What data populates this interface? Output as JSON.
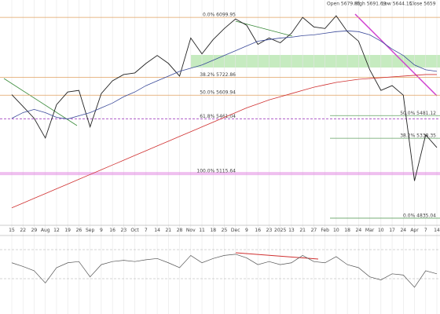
{
  "chart_data": [
    {
      "type": "line",
      "header": [
        "Open 5679.65",
        "High 5691.69",
        "Low 5644.15",
        "Close 5659"
      ],
      "categories": [
        "15",
        "22",
        "29",
        "Aug",
        "12",
        "19",
        "26",
        "Sep",
        "9",
        "16",
        "23",
        "Oct",
        "7",
        "14",
        "21",
        "28",
        "Nov",
        "11",
        "18",
        "25",
        "Dec",
        "9",
        "16",
        "23",
        "2025",
        "13",
        "21",
        "27",
        "Feb",
        "10",
        "18",
        "24",
        "Mar",
        "10",
        "17",
        "24",
        "Apr",
        "7",
        "14"
      ],
      "series": [
        {
          "color": "#222222",
          "values": [
            5613,
            5539,
            5464,
            5340,
            5550,
            5630,
            5640,
            5410,
            5620,
            5700,
            5740,
            5750,
            5810,
            5860,
            5810,
            5730,
            5970,
            5870,
            5960,
            6030,
            6090,
            6050,
            5930,
            5970,
            5940,
            6000,
            6100,
            6040,
            6030,
            6110,
            6010,
            5950,
            5770,
            5640,
            5670,
            5610,
            5070,
            5360,
            5280
          ]
        },
        {
          "color": "#3a4a9a",
          "values": [
            5464,
            5500,
            5520,
            5500,
            5470,
            5460,
            5480,
            5500,
            5530,
            5560,
            5600,
            5630,
            5670,
            5700,
            5730,
            5760,
            5780,
            5800,
            5830,
            5860,
            5890,
            5920,
            5950,
            5960,
            5970,
            5975,
            5985,
            5990,
            6000,
            6010,
            6015,
            6010,
            5990,
            5950,
            5900,
            5860,
            5800,
            5770,
            5760
          ]
        },
        {
          "color": "#d03030",
          "values": [
            4900,
            4930,
            4960,
            4990,
            5020,
            5050,
            5080,
            5110,
            5140,
            5170,
            5200,
            5230,
            5260,
            5290,
            5320,
            5350,
            5380,
            5410,
            5440,
            5470,
            5500,
            5530,
            5555,
            5580,
            5600,
            5620,
            5640,
            5660,
            5675,
            5690,
            5700,
            5710,
            5715,
            5720,
            5725,
            5730,
            5735,
            5740,
            5740
          ]
        }
      ],
      "levels": [
        {
          "label": "0.0% 6099.95",
          "value": 6099.95,
          "color": "#e0a060"
        },
        {
          "label": "38.2% 5722.86",
          "value": 5722.86,
          "color": "#e0a060"
        },
        {
          "label": "50.0% 5609.94",
          "value": 5609.94,
          "color": "#e0a060"
        },
        {
          "label": "61.8% 5461.04",
          "value": 5461.04,
          "color": "#a040c0"
        },
        {
          "label": "100.0% 5115.64",
          "value": 5115.64,
          "color": "#e080e0"
        },
        {
          "label": "50.0% 5481.12",
          "value": 5481.12,
          "color": "#60a060"
        },
        {
          "label": "38.2% 5338.35",
          "value": 5338.35,
          "color": "#60a060"
        },
        {
          "label": "0.0% 4835.04",
          "value": 4835.04,
          "color": "#60a060"
        }
      ],
      "ylim": [
        4800,
        6160
      ]
    },
    {
      "type": "line",
      "color": "#555555",
      "values": [
        58,
        52,
        45,
        25,
        50,
        58,
        60,
        35,
        55,
        60,
        62,
        60,
        63,
        65,
        58,
        50,
        70,
        58,
        65,
        70,
        72,
        66,
        55,
        60,
        55,
        58,
        70,
        60,
        58,
        68,
        55,
        50,
        35,
        30,
        40,
        38,
        18,
        45,
        40
      ],
      "ylim": [
        0,
        100
      ]
    }
  ]
}
